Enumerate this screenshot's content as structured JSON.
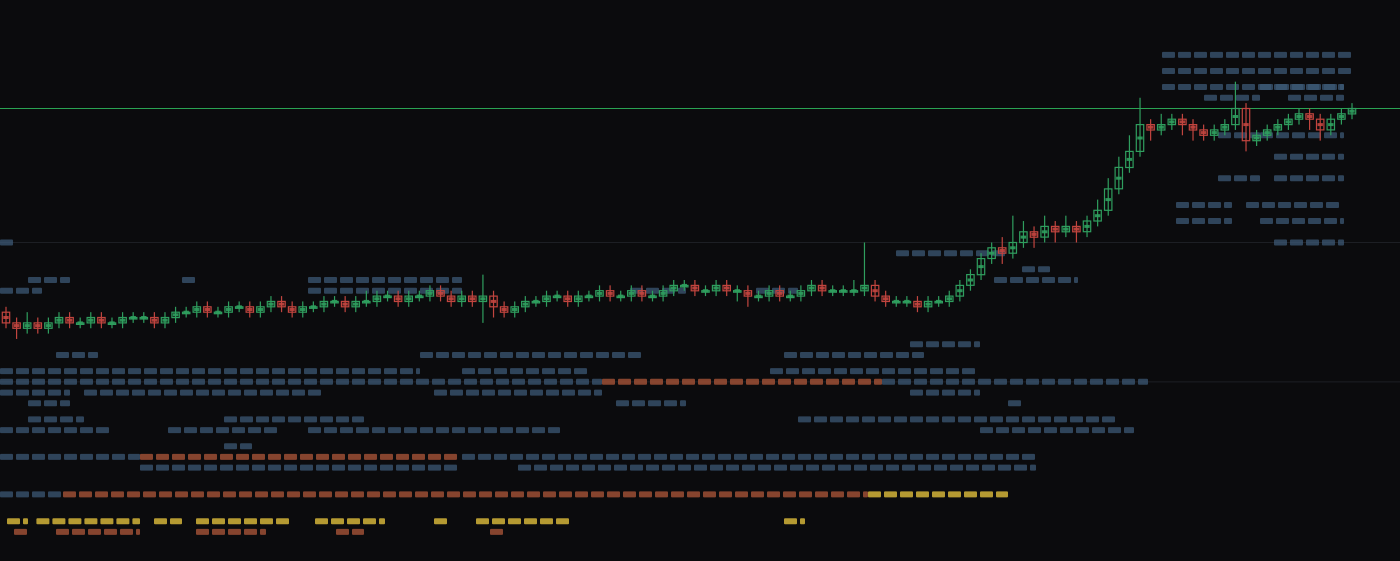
{
  "chart_data": {
    "type": "candlestick",
    "title": "",
    "xlabel": "",
    "ylabel": "",
    "ylim": [
      0,
      100
    ],
    "grid": "horizontal",
    "colors": {
      "background": "#0b0b0d",
      "up": "#2f9e5e",
      "down": "#c2453f",
      "price_line": "#2ec45f",
      "heat_cool": "#3c5874",
      "heat_warm": "#9c4f35",
      "heat_hot": "#d4b43a",
      "gridline": "#1d1f24"
    },
    "price_line_value": 82,
    "gridline_values": [
      82,
      57,
      31
    ],
    "candles": [
      [
        44,
        42,
        45,
        41
      ],
      [
        42,
        41,
        43,
        39
      ],
      [
        41,
        42,
        44,
        40
      ],
      [
        42,
        41,
        43,
        40
      ],
      [
        41,
        42,
        43,
        40
      ],
      [
        42,
        43,
        44,
        41
      ],
      [
        43,
        42,
        44,
        41
      ],
      [
        42,
        42,
        43,
        41
      ],
      [
        42,
        43,
        44,
        41
      ],
      [
        43,
        42,
        44,
        41
      ],
      [
        42,
        42,
        43,
        41
      ],
      [
        42,
        43,
        44,
        41
      ],
      [
        43,
        43,
        44,
        42
      ],
      [
        43,
        43,
        44,
        42
      ],
      [
        43,
        42,
        44,
        41
      ],
      [
        42,
        43,
        44,
        41
      ],
      [
        43,
        44,
        45,
        42
      ],
      [
        44,
        44,
        45,
        43
      ],
      [
        44,
        45,
        46,
        43
      ],
      [
        45,
        44,
        46,
        43
      ],
      [
        44,
        44,
        45,
        43
      ],
      [
        44,
        45,
        46,
        43
      ],
      [
        45,
        45,
        46,
        44
      ],
      [
        45,
        44,
        46,
        43
      ],
      [
        44,
        45,
        46,
        43
      ],
      [
        45,
        46,
        47,
        44
      ],
      [
        46,
        45,
        47,
        44
      ],
      [
        45,
        44,
        46,
        43
      ],
      [
        44,
        45,
        46,
        43
      ],
      [
        45,
        45,
        46,
        44
      ],
      [
        45,
        46,
        47,
        44
      ],
      [
        46,
        46,
        47,
        45
      ],
      [
        46,
        45,
        47,
        44
      ],
      [
        45,
        46,
        47,
        44
      ],
      [
        46,
        46,
        48,
        45
      ],
      [
        46,
        47,
        48,
        45
      ],
      [
        47,
        47,
        48,
        46
      ],
      [
        47,
        46,
        48,
        45
      ],
      [
        46,
        47,
        48,
        45
      ],
      [
        47,
        47,
        48,
        46
      ],
      [
        47,
        48,
        49,
        46
      ],
      [
        48,
        47,
        49,
        46
      ],
      [
        47,
        46,
        48,
        45
      ],
      [
        46,
        47,
        48,
        45
      ],
      [
        47,
        46,
        48,
        45
      ],
      [
        46,
        47,
        51,
        42
      ],
      [
        47,
        45,
        48,
        43
      ],
      [
        45,
        44,
        46,
        43
      ],
      [
        44,
        45,
        46,
        43
      ],
      [
        45,
        46,
        47,
        44
      ],
      [
        46,
        46,
        47,
        45
      ],
      [
        46,
        47,
        48,
        45
      ],
      [
        47,
        47,
        48,
        46
      ],
      [
        47,
        46,
        48,
        45
      ],
      [
        46,
        47,
        48,
        45
      ],
      [
        47,
        47,
        48,
        46
      ],
      [
        47,
        48,
        49,
        46
      ],
      [
        48,
        47,
        49,
        46
      ],
      [
        47,
        47,
        48,
        46
      ],
      [
        47,
        48,
        49,
        46
      ],
      [
        48,
        47,
        49,
        46
      ],
      [
        47,
        47,
        48,
        46
      ],
      [
        47,
        48,
        49,
        46
      ],
      [
        48,
        49,
        50,
        47
      ],
      [
        49,
        49,
        50,
        48
      ],
      [
        49,
        48,
        50,
        47
      ],
      [
        48,
        48,
        49,
        47
      ],
      [
        48,
        49,
        50,
        47
      ],
      [
        49,
        48,
        50,
        47
      ],
      [
        48,
        48,
        49,
        46
      ],
      [
        48,
        47,
        49,
        45
      ],
      [
        47,
        47,
        48,
        46
      ],
      [
        47,
        48,
        49,
        46
      ],
      [
        48,
        47,
        49,
        46
      ],
      [
        47,
        47,
        48,
        46
      ],
      [
        47,
        48,
        49,
        46
      ],
      [
        48,
        49,
        50,
        47
      ],
      [
        49,
        48,
        50,
        47
      ],
      [
        48,
        48,
        49,
        47
      ],
      [
        48,
        48,
        49,
        47
      ],
      [
        48,
        48,
        50,
        47
      ],
      [
        48,
        49,
        57,
        47
      ],
      [
        49,
        47,
        50,
        46
      ],
      [
        47,
        46,
        48,
        45
      ],
      [
        46,
        46,
        47,
        45
      ],
      [
        46,
        46,
        47,
        45
      ],
      [
        46,
        45,
        47,
        44
      ],
      [
        45,
        46,
        47,
        44
      ],
      [
        46,
        46,
        47,
        45
      ],
      [
        46,
        47,
        48,
        45
      ],
      [
        47,
        49,
        50,
        46
      ],
      [
        49,
        51,
        52,
        48
      ],
      [
        51,
        54,
        55,
        50
      ],
      [
        54,
        56,
        57,
        53
      ],
      [
        56,
        55,
        58,
        53
      ],
      [
        55,
        57,
        62,
        54
      ],
      [
        57,
        59,
        61,
        56
      ],
      [
        59,
        58,
        60,
        56
      ],
      [
        58,
        60,
        62,
        57
      ],
      [
        60,
        59,
        61,
        57
      ],
      [
        59,
        60,
        62,
        58
      ],
      [
        60,
        59,
        61,
        57
      ],
      [
        59,
        61,
        62,
        58
      ],
      [
        61,
        63,
        65,
        60
      ],
      [
        63,
        67,
        69,
        62
      ],
      [
        67,
        71,
        73,
        66
      ],
      [
        71,
        74,
        77,
        70
      ],
      [
        74,
        79,
        84,
        73
      ],
      [
        79,
        78,
        80,
        76
      ],
      [
        78,
        79,
        81,
        77
      ],
      [
        79,
        80,
        81,
        78
      ],
      [
        80,
        79,
        81,
        77
      ],
      [
        79,
        78,
        80,
        76
      ],
      [
        78,
        77,
        79,
        76
      ],
      [
        77,
        78,
        79,
        76
      ],
      [
        78,
        79,
        80,
        77
      ],
      [
        79,
        82,
        87,
        78
      ],
      [
        82,
        76,
        83,
        74
      ],
      [
        76,
        77,
        78,
        75
      ],
      [
        77,
        78,
        79,
        76
      ],
      [
        78,
        79,
        80,
        77
      ],
      [
        79,
        80,
        81,
        78
      ],
      [
        80,
        81,
        82,
        79
      ],
      [
        81,
        80,
        82,
        78
      ],
      [
        80,
        78,
        81,
        76
      ],
      [
        78,
        80,
        81,
        77
      ],
      [
        80,
        81,
        82,
        79
      ],
      [
        81,
        82,
        83,
        80
      ]
    ],
    "heat_rows": [
      {
        "value": 92,
        "runs": [
          [
            0.83,
            0.965,
            1
          ]
        ]
      },
      {
        "value": 89,
        "runs": [
          [
            0.83,
            0.965,
            1
          ]
        ]
      },
      {
        "value": 86,
        "runs": [
          [
            0.83,
            0.96,
            1
          ],
          [
            0.9,
            0.96,
            1
          ]
        ]
      },
      {
        "value": 84,
        "runs": [
          [
            0.86,
            0.9,
            1
          ],
          [
            0.92,
            0.96,
            1
          ]
        ]
      },
      {
        "value": 77,
        "runs": [
          [
            0.87,
            0.9,
            1
          ],
          [
            0.9,
            0.96,
            1
          ]
        ]
      },
      {
        "value": 73,
        "runs": [
          [
            0.91,
            0.96,
            1
          ]
        ]
      },
      {
        "value": 69,
        "runs": [
          [
            0.87,
            0.9,
            1
          ],
          [
            0.91,
            0.96,
            1
          ]
        ]
      },
      {
        "value": 64,
        "runs": [
          [
            0.84,
            0.88,
            1
          ],
          [
            0.89,
            0.96,
            1
          ]
        ]
      },
      {
        "value": 61,
        "runs": [
          [
            0.84,
            0.88,
            1
          ],
          [
            0.9,
            0.96,
            1
          ]
        ]
      },
      {
        "value": 57,
        "runs": [
          [
            0.0,
            0.012,
            1
          ],
          [
            0.91,
            0.96,
            1
          ]
        ]
      },
      {
        "value": 55,
        "runs": [
          [
            0.64,
            0.72,
            1
          ]
        ]
      },
      {
        "value": 52,
        "runs": [
          [
            0.73,
            0.75,
            1
          ]
        ]
      },
      {
        "value": 50,
        "runs": [
          [
            0.02,
            0.05,
            1
          ],
          [
            0.13,
            0.14,
            1
          ],
          [
            0.22,
            0.33,
            1
          ],
          [
            0.71,
            0.77,
            1
          ]
        ]
      },
      {
        "value": 48,
        "runs": [
          [
            0.0,
            0.03,
            1
          ],
          [
            0.22,
            0.33,
            1
          ],
          [
            0.45,
            0.49,
            1
          ],
          [
            0.54,
            0.57,
            1
          ]
        ]
      },
      {
        "value": 38,
        "runs": [
          [
            0.65,
            0.7,
            1
          ]
        ]
      },
      {
        "value": 36,
        "runs": [
          [
            0.04,
            0.07,
            1
          ],
          [
            0.3,
            0.46,
            1
          ],
          [
            0.56,
            0.66,
            1
          ]
        ]
      },
      {
        "value": 33,
        "runs": [
          [
            0.0,
            0.3,
            1
          ],
          [
            0.33,
            0.42,
            1
          ],
          [
            0.55,
            0.7,
            1
          ]
        ]
      },
      {
        "value": 31,
        "runs": [
          [
            0.0,
            0.43,
            1
          ],
          [
            0.43,
            0.63,
            2
          ],
          [
            0.63,
            0.82,
            1
          ]
        ]
      },
      {
        "value": 29,
        "runs": [
          [
            0.0,
            0.05,
            1
          ],
          [
            0.06,
            0.23,
            1
          ],
          [
            0.31,
            0.43,
            1
          ],
          [
            0.65,
            0.7,
            1
          ]
        ]
      },
      {
        "value": 27,
        "runs": [
          [
            0.02,
            0.05,
            1
          ],
          [
            0.44,
            0.49,
            1
          ],
          [
            0.72,
            0.73,
            1
          ]
        ]
      },
      {
        "value": 24,
        "runs": [
          [
            0.02,
            0.06,
            1
          ],
          [
            0.16,
            0.26,
            1
          ],
          [
            0.57,
            0.8,
            1
          ]
        ]
      },
      {
        "value": 22,
        "runs": [
          [
            0.0,
            0.08,
            1
          ],
          [
            0.12,
            0.2,
            1
          ],
          [
            0.22,
            0.4,
            1
          ],
          [
            0.7,
            0.81,
            1
          ]
        ]
      },
      {
        "value": 19,
        "runs": [
          [
            0.16,
            0.18,
            1
          ]
        ]
      },
      {
        "value": 17,
        "runs": [
          [
            0.0,
            0.1,
            1
          ],
          [
            0.1,
            0.33,
            2
          ],
          [
            0.33,
            0.74,
            1
          ]
        ]
      },
      {
        "value": 15,
        "runs": [
          [
            0.1,
            0.33,
            1
          ],
          [
            0.37,
            0.74,
            1
          ]
        ]
      },
      {
        "value": 10,
        "runs": [
          [
            0.0,
            0.045,
            1
          ],
          [
            0.045,
            0.62,
            2
          ],
          [
            0.62,
            0.72,
            3
          ]
        ]
      },
      {
        "value": 5,
        "runs": [
          [
            0.005,
            0.02,
            3
          ],
          [
            0.026,
            0.1,
            3
          ],
          [
            0.11,
            0.13,
            3
          ],
          [
            0.14,
            0.21,
            3
          ],
          [
            0.225,
            0.275,
            3
          ],
          [
            0.31,
            0.32,
            3
          ],
          [
            0.34,
            0.41,
            3
          ],
          [
            0.56,
            0.575,
            3
          ]
        ]
      },
      {
        "value": 3,
        "runs": [
          [
            0.01,
            0.02,
            2
          ],
          [
            0.04,
            0.1,
            2
          ],
          [
            0.14,
            0.19,
            2
          ],
          [
            0.24,
            0.26,
            2
          ],
          [
            0.35,
            0.36,
            2
          ]
        ]
      }
    ]
  }
}
